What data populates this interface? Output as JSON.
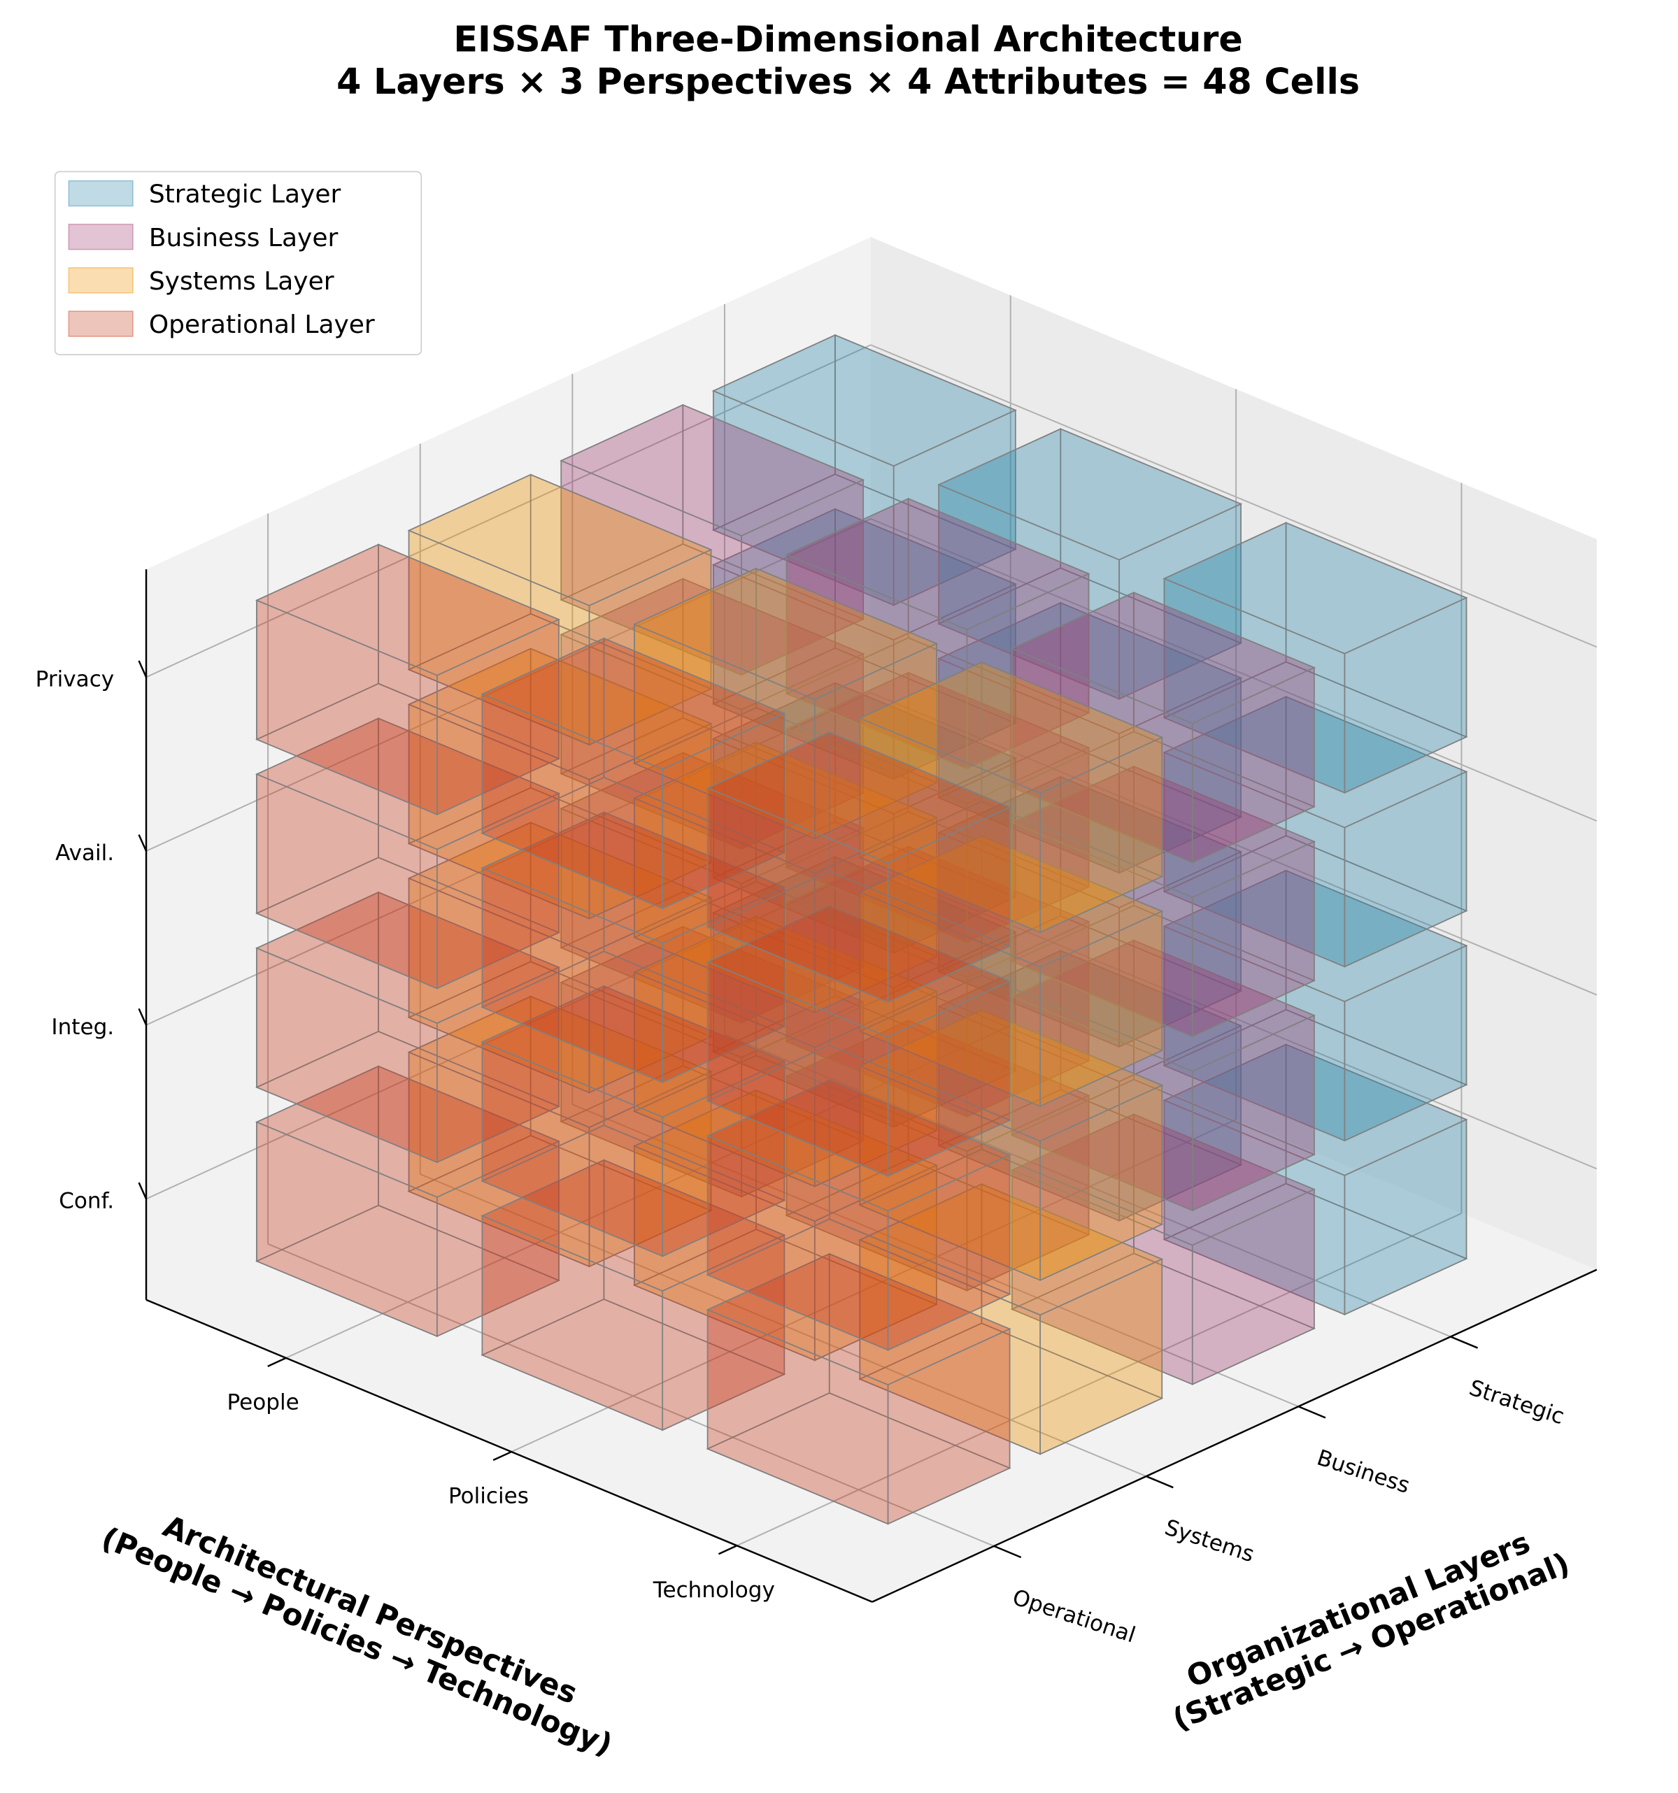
{
  "chart_data": {
    "type": "3d-voxel",
    "title": "EISSAF Three-Dimensional Architecture",
    "subtitle": "4 Layers × 3 Perspectives × 4 Attributes = 48 Cells",
    "xlabel": "Architectural Perspectives\n(People → Policies → Technology)",
    "xlabel_lines": [
      "Architectural Perspectives",
      "(People → Policies → Technology)"
    ],
    "ylabel_lines": [
      "Organizational Layers",
      "(Strategic → Operational)"
    ],
    "perspectives": [
      "People",
      "Policies",
      "Technology"
    ],
    "layers": [
      "Strategic",
      "Business",
      "Systems",
      "Operational"
    ],
    "attributes": [
      "Conf.",
      "Integ.",
      "Avail.",
      "Privacy"
    ],
    "filled": "all",
    "cell_count": 48,
    "grid": true,
    "legend_position": "top-left",
    "legend": [
      {
        "label": "Strategic Layer",
        "color": "#2E86AB"
      },
      {
        "label": "Business Layer",
        "color": "#A23B72"
      },
      {
        "label": "Systems Layer",
        "color": "#F18F01"
      },
      {
        "label": "Operational Layer",
        "color": "#C73E1D"
      }
    ]
  }
}
